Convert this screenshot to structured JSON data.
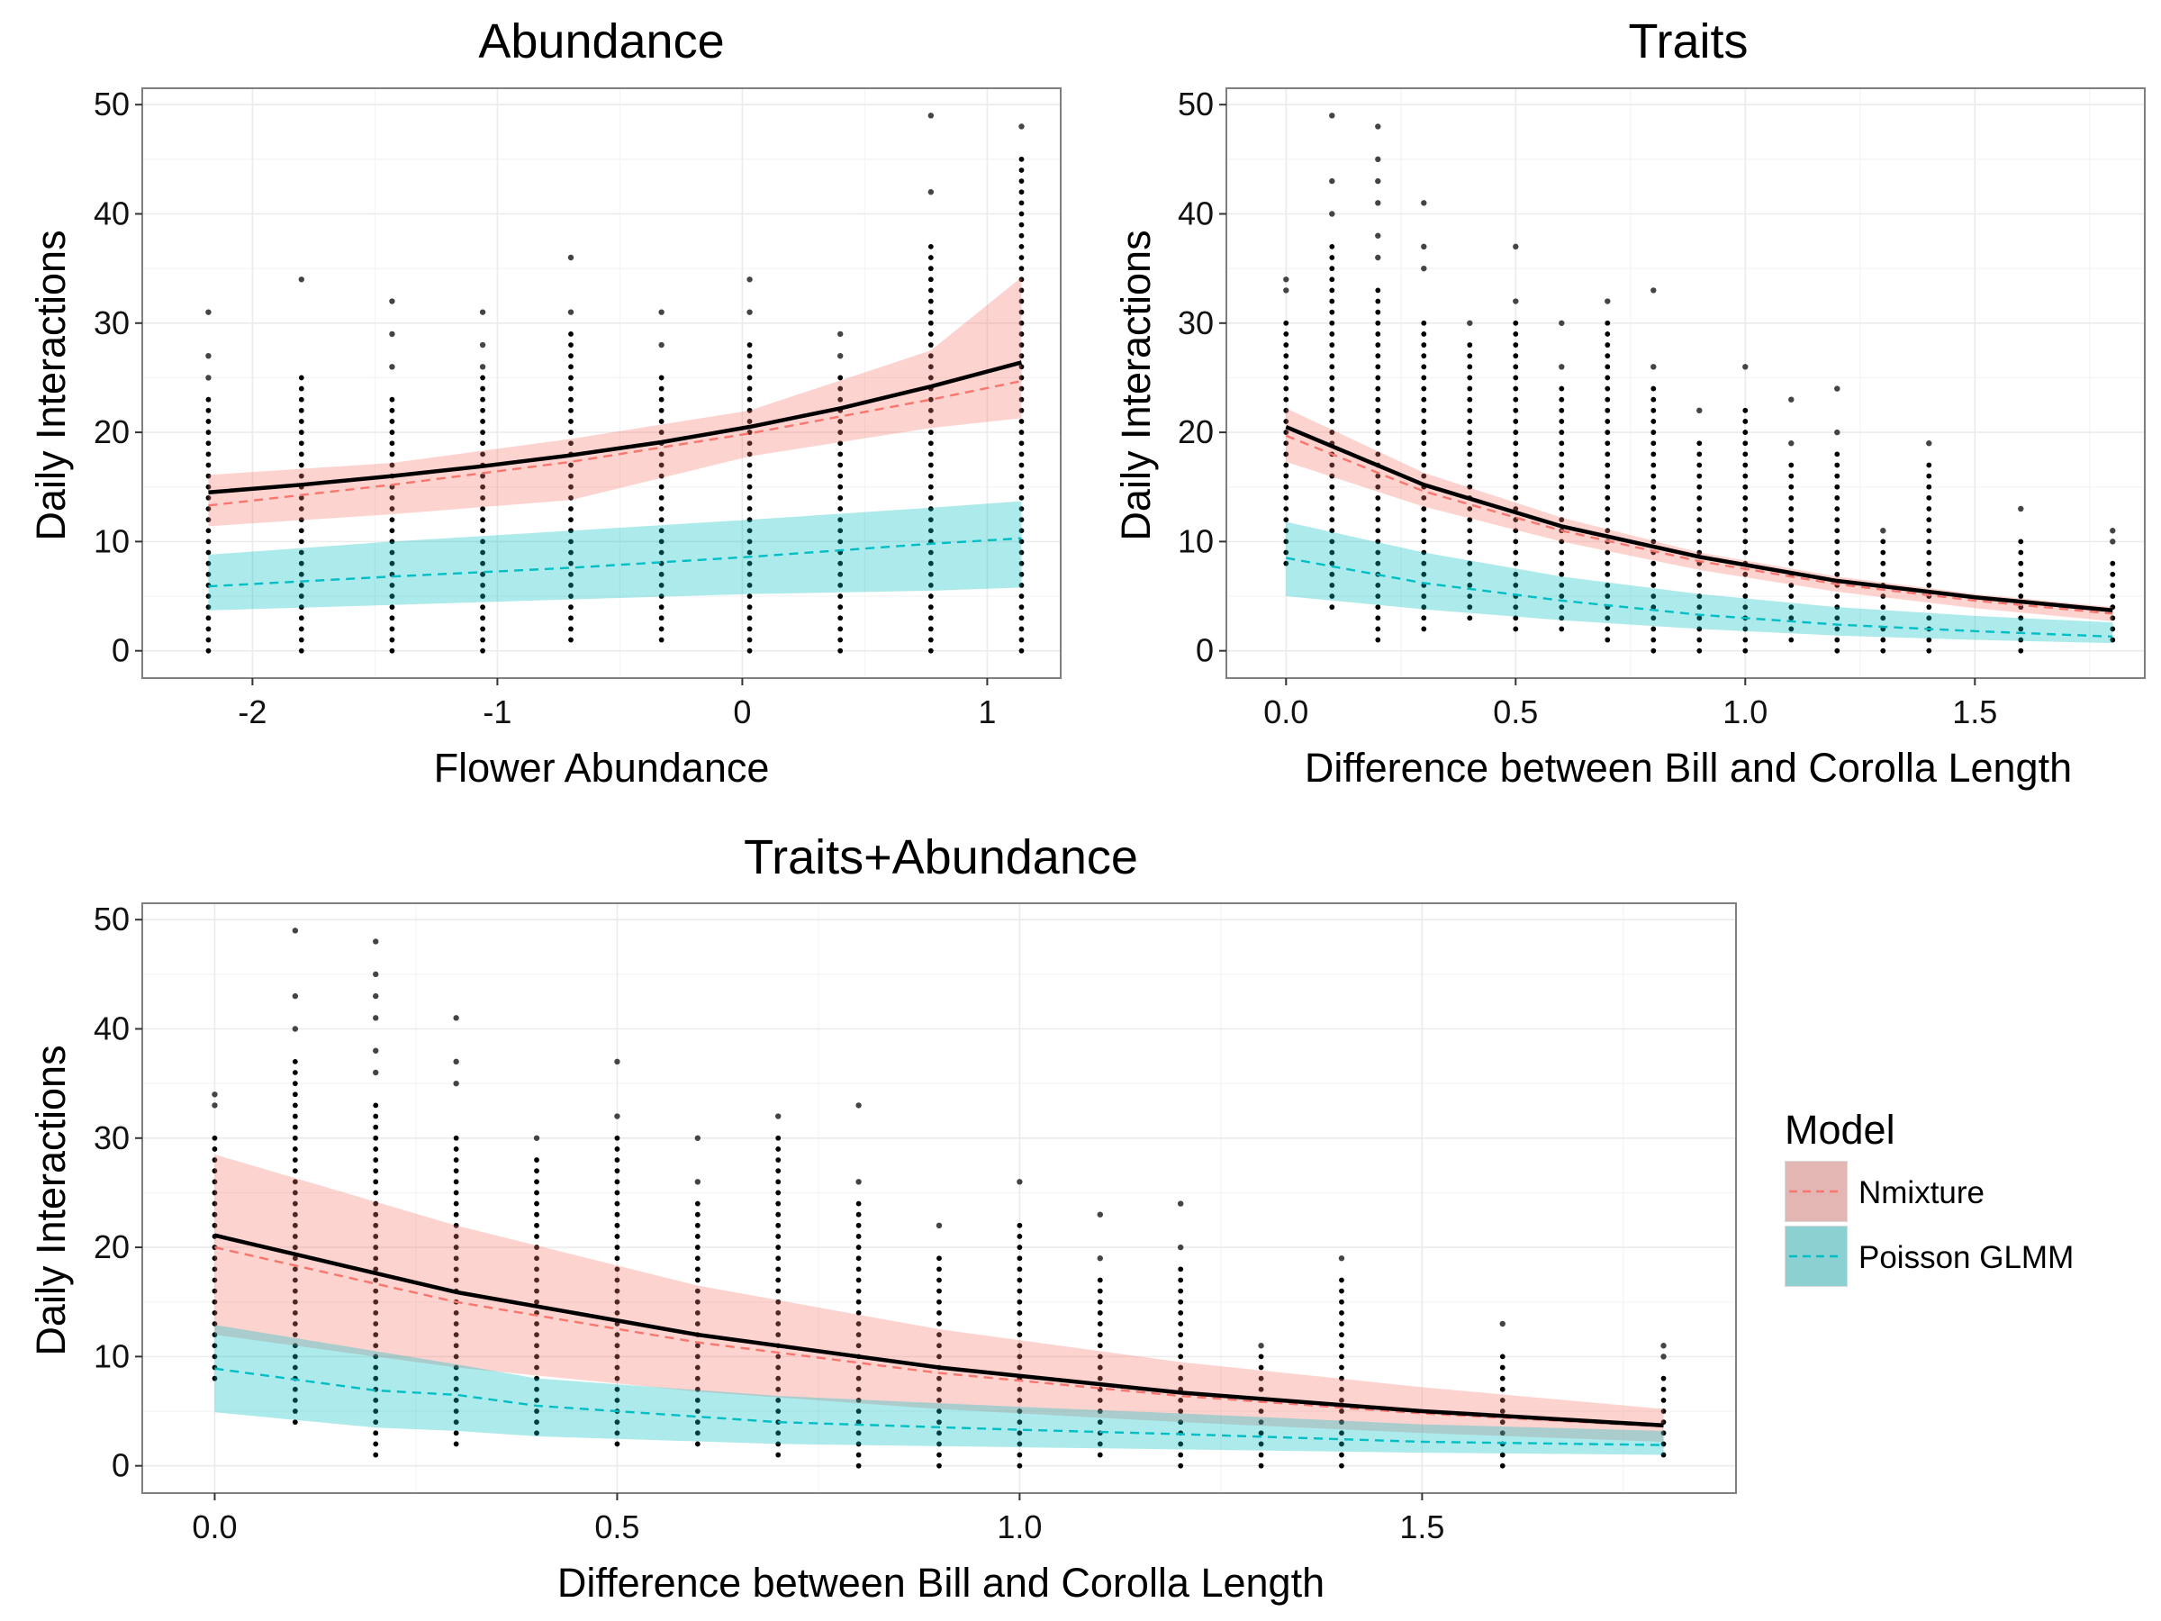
{
  "colors": {
    "nmixture": "#F8766D",
    "nmixture_band": "#F8766D",
    "poisson": "#00BFC4",
    "poisson_band": "#00BFC4",
    "combined": "#000000",
    "points": "#000000",
    "grid": "#ebebeb",
    "panel_border": "#7f7f7f"
  },
  "legend": {
    "title": "Model",
    "items": [
      {
        "label": "Nmixture",
        "color": "#F8766D"
      },
      {
        "label": "Poisson GLMM",
        "color": "#00BFC4"
      }
    ]
  },
  "chart_data": [
    {
      "type": "line",
      "title": "Abundance",
      "xlabel": "Flower Abundance",
      "ylabel": "Daily Interactions",
      "xlim": [
        -2.45,
        1.3
      ],
      "ylim": [
        -2.5,
        51.5
      ],
      "xticks": [
        -2,
        -1,
        0,
        1
      ],
      "xtick_labels": [
        "-2",
        "-1",
        "0",
        "1"
      ],
      "yticks": [
        0,
        10,
        20,
        30,
        40,
        50
      ],
      "ytick_labels": [
        "0",
        "10",
        "20",
        "30",
        "40",
        "50"
      ],
      "grid": true,
      "points": {
        "x_levels": [
          -2.18,
          -1.8,
          -1.43,
          -1.06,
          -0.7,
          -0.33,
          0.03,
          0.4,
          0.77,
          1.14
        ],
        "ranges": [
          [
            0,
            23
          ],
          [
            0,
            25
          ],
          [
            0,
            23
          ],
          [
            0,
            25
          ],
          [
            1,
            29
          ],
          [
            1,
            25
          ],
          [
            0,
            28
          ],
          [
            0,
            25
          ],
          [
            0,
            37
          ],
          [
            0,
            45
          ]
        ],
        "outliers": [
          [
            25,
            27,
            31
          ],
          [
            34
          ],
          [
            26,
            29,
            32
          ],
          [
            26,
            28,
            31
          ],
          [
            31,
            36
          ],
          [
            28,
            31
          ],
          [
            31,
            34
          ],
          [
            27,
            29
          ],
          [
            42,
            49
          ],
          [
            48
          ]
        ]
      },
      "series": [
        {
          "name": "Nmixture",
          "x": [
            -2.18,
            -1.43,
            -0.7,
            0.03,
            0.77,
            1.14
          ],
          "y": [
            13.3,
            15.2,
            17.3,
            19.9,
            23.0,
            24.7
          ],
          "lower": [
            11.4,
            12.5,
            13.8,
            17.8,
            20.4,
            21.3
          ],
          "upper": [
            16.1,
            17.2,
            19.4,
            22.0,
            27.5,
            34.2
          ]
        },
        {
          "name": "Poisson GLMM",
          "x": [
            -2.18,
            -1.43,
            -0.7,
            0.03,
            0.77,
            1.14
          ],
          "y": [
            5.9,
            6.8,
            7.6,
            8.6,
            9.8,
            10.3
          ],
          "lower": [
            3.7,
            4.2,
            4.7,
            5.2,
            5.5,
            5.8
          ],
          "upper": [
            8.8,
            10.0,
            11.0,
            12.0,
            13.1,
            13.7
          ]
        },
        {
          "name": "",
          "x": [
            -2.18,
            -1.8,
            -1.43,
            -1.06,
            -0.7,
            -0.33,
            0.03,
            0.4,
            0.77,
            1.14
          ],
          "y": [
            14.5,
            15.2,
            16.0,
            16.9,
            17.9,
            19.1,
            20.5,
            22.2,
            24.2,
            26.4
          ]
        }
      ]
    },
    {
      "type": "line",
      "title": "Traits",
      "xlabel": "Difference between Bill and Corolla Length",
      "ylabel": "Daily Interactions",
      "xlim": [
        -0.13,
        1.87
      ],
      "ylim": [
        -2.5,
        51.5
      ],
      "xticks": [
        0,
        0.5,
        1.0,
        1.5
      ],
      "xtick_labels": [
        "0.0",
        "0.5",
        "1.0",
        "1.5"
      ],
      "yticks": [
        0,
        10,
        20,
        30,
        40,
        50
      ],
      "ytick_labels": [
        "0",
        "10",
        "20",
        "30",
        "40",
        "50"
      ],
      "grid": true,
      "points": {
        "x_levels": [
          0.0,
          0.1,
          0.2,
          0.3,
          0.4,
          0.5,
          0.6,
          0.7,
          0.8,
          0.9,
          1.0,
          1.1,
          1.2,
          1.3,
          1.4,
          1.6,
          1.8
        ],
        "ranges": [
          [
            8,
            30
          ],
          [
            4,
            37
          ],
          [
            1,
            33
          ],
          [
            2,
            30
          ],
          [
            3,
            28
          ],
          [
            2,
            30
          ],
          [
            2,
            24
          ],
          [
            1,
            30
          ],
          [
            0,
            24
          ],
          [
            0,
            19
          ],
          [
            0,
            22
          ],
          [
            1,
            17
          ],
          [
            0,
            18
          ],
          [
            0,
            10
          ],
          [
            0,
            17
          ],
          [
            0,
            10
          ],
          [
            1,
            8
          ]
        ],
        "outliers": [
          [
            33,
            34
          ],
          [
            40,
            43,
            49
          ],
          [
            36,
            38,
            41,
            43,
            45,
            48
          ],
          [
            35,
            37,
            41
          ],
          [
            30
          ],
          [
            32,
            37
          ],
          [
            26,
            30
          ],
          [
            32
          ],
          [
            26,
            33
          ],
          [
            22
          ],
          [
            26
          ],
          [
            19,
            23
          ],
          [
            20,
            24
          ],
          [
            11
          ],
          [
            19
          ],
          [
            13
          ],
          [
            10,
            11
          ]
        ]
      },
      "series": [
        {
          "name": "Nmixture",
          "x": [
            0.0,
            0.3,
            0.6,
            0.9,
            1.2,
            1.5,
            1.8
          ],
          "y": [
            19.7,
            14.6,
            11.0,
            8.2,
            6.1,
            4.6,
            3.4
          ],
          "lower": [
            17.3,
            13.2,
            10.0,
            7.4,
            5.4,
            3.9,
            2.7
          ],
          "upper": [
            22.2,
            16.3,
            12.2,
            9.0,
            6.8,
            5.2,
            4.0
          ]
        },
        {
          "name": "Poisson GLMM",
          "x": [
            0.0,
            0.3,
            0.6,
            0.9,
            1.2,
            1.5,
            1.8
          ],
          "y": [
            8.5,
            6.2,
            4.6,
            3.3,
            2.4,
            1.8,
            1.3
          ],
          "lower": [
            5.0,
            3.8,
            2.8,
            2.0,
            1.4,
            1.0,
            0.7
          ],
          "upper": [
            11.8,
            9.0,
            6.8,
            5.2,
            4.0,
            3.2,
            2.6
          ]
        },
        {
          "name": "",
          "x": [
            0.0,
            0.3,
            0.6,
            0.9,
            1.2,
            1.5,
            1.8
          ],
          "y": [
            20.5,
            15.2,
            11.4,
            8.6,
            6.4,
            4.9,
            3.7
          ]
        }
      ]
    },
    {
      "type": "line",
      "title": "Traits+Abundance",
      "xlabel": "Difference between Bill and Corolla Length",
      "ylabel": "Daily Interactions",
      "xlim": [
        -0.09,
        1.89
      ],
      "ylim": [
        -2.5,
        51.5
      ],
      "xticks": [
        0,
        0.5,
        1.0,
        1.5
      ],
      "xtick_labels": [
        "0.0",
        "0.5",
        "1.0",
        "1.5"
      ],
      "yticks": [
        0,
        10,
        20,
        30,
        40,
        50
      ],
      "ytick_labels": [
        "0",
        "10",
        "20",
        "30",
        "40",
        "50"
      ],
      "grid": true,
      "points": {
        "x_levels": [
          0.0,
          0.1,
          0.2,
          0.3,
          0.4,
          0.5,
          0.6,
          0.7,
          0.8,
          0.9,
          1.0,
          1.1,
          1.2,
          1.3,
          1.4,
          1.6,
          1.8
        ],
        "ranges": [
          [
            8,
            30
          ],
          [
            4,
            37
          ],
          [
            1,
            33
          ],
          [
            2,
            30
          ],
          [
            3,
            28
          ],
          [
            2,
            30
          ],
          [
            2,
            24
          ],
          [
            1,
            30
          ],
          [
            0,
            24
          ],
          [
            0,
            19
          ],
          [
            0,
            22
          ],
          [
            1,
            17
          ],
          [
            0,
            18
          ],
          [
            0,
            10
          ],
          [
            0,
            17
          ],
          [
            0,
            10
          ],
          [
            1,
            8
          ]
        ],
        "outliers": [
          [
            33,
            34
          ],
          [
            40,
            43,
            49
          ],
          [
            36,
            38,
            41,
            43,
            45,
            48
          ],
          [
            35,
            37,
            41
          ],
          [
            30
          ],
          [
            32,
            37
          ],
          [
            26,
            30
          ],
          [
            32
          ],
          [
            26,
            33
          ],
          [
            22
          ],
          [
            26
          ],
          [
            19,
            23
          ],
          [
            20,
            24
          ],
          [
            11
          ],
          [
            19
          ],
          [
            13
          ],
          [
            10,
            11
          ]
        ]
      },
      "series": [
        {
          "name": "Nmixture",
          "x": [
            0.0,
            0.3,
            0.6,
            0.9,
            1.2,
            1.5,
            1.8
          ],
          "y": [
            20.0,
            15.0,
            11.3,
            8.5,
            6.4,
            4.8,
            3.6
          ],
          "lower": [
            12.0,
            9.0,
            6.8,
            5.2,
            4.0,
            3.0,
            2.2
          ],
          "upper": [
            28.5,
            22.0,
            16.5,
            12.5,
            9.5,
            7.2,
            5.2
          ]
        },
        {
          "name": "Poisson GLMM",
          "x": [
            0.0,
            0.2,
            0.3,
            0.4,
            0.7,
            1.0,
            1.2,
            1.5,
            1.8
          ],
          "y": [
            8.9,
            6.9,
            6.5,
            5.5,
            4.0,
            3.3,
            2.9,
            2.2,
            1.9
          ],
          "lower": [
            4.9,
            3.5,
            3.2,
            2.7,
            2.0,
            1.7,
            1.5,
            1.2,
            1.0
          ],
          "upper": [
            12.9,
            10.5,
            9.3,
            8.0,
            6.4,
            5.4,
            4.8,
            3.8,
            3.2
          ]
        },
        {
          "name": "",
          "x": [
            0.0,
            0.3,
            0.6,
            0.9,
            1.2,
            1.5,
            1.8
          ],
          "y": [
            21.1,
            15.9,
            12.0,
            9.0,
            6.7,
            5.0,
            3.7
          ]
        }
      ]
    }
  ]
}
